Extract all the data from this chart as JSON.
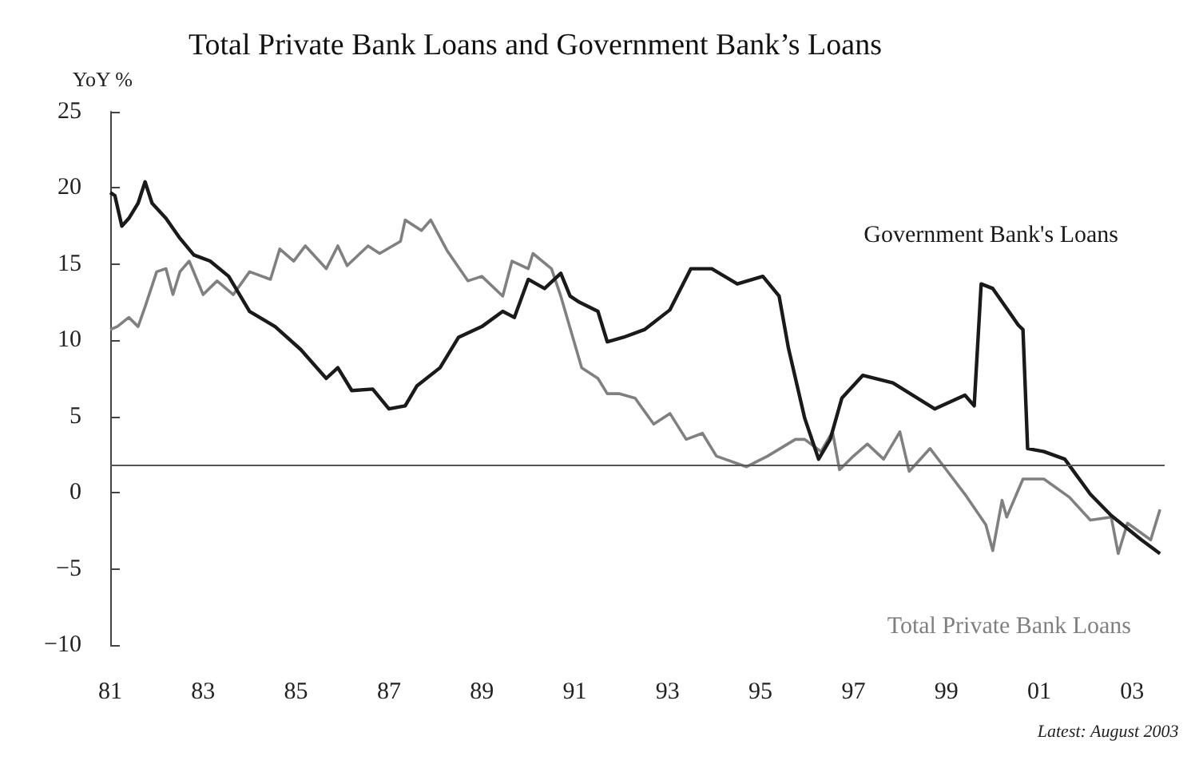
{
  "chart_data": {
    "type": "line",
    "title": "Total Private Bank Loans and Government Bank’s Loans",
    "ylabel": "YoY %",
    "annotations": [
      "Latest: August 2003"
    ],
    "series": [
      {
        "name": "Government Bank's Loans",
        "color": "#1a1a1a",
        "x": [
          1981.0,
          1981.1,
          1981.25,
          1981.4,
          1981.6,
          1981.75,
          1981.9,
          1982.2,
          1982.5,
          1982.8,
          1983.15,
          1983.55,
          1984.0,
          1984.55,
          1985.1,
          1985.65,
          1985.9,
          1986.2,
          1986.65,
          1987.0,
          1987.35,
          1987.6,
          1988.1,
          1988.5,
          1989.0,
          1989.45,
          1989.7,
          1990.0,
          1990.35,
          1990.7,
          1990.9,
          1991.1,
          1991.5,
          1991.7,
          1992.05,
          1992.5,
          1993.05,
          1993.5,
          1993.95,
          1994.5,
          1995.05,
          1995.4,
          1995.6,
          1995.95,
          1996.25,
          1996.5,
          1996.75,
          1997.2,
          1997.85,
          1998.75,
          1999.4,
          1999.6,
          1999.75,
          2000.0,
          2000.55,
          2000.65,
          2000.75,
          2001.1,
          2001.55,
          2002.1,
          2002.55,
          2003.2,
          2003.6
        ],
        "values": [
          19.7,
          19.5,
          17.5,
          18.0,
          19.0,
          20.4,
          19.0,
          18.0,
          16.7,
          15.6,
          15.2,
          14.2,
          11.9,
          10.9,
          9.4,
          7.5,
          8.2,
          6.7,
          6.8,
          5.5,
          5.7,
          7.0,
          8.2,
          10.2,
          10.9,
          11.9,
          11.5,
          14.0,
          13.4,
          14.4,
          12.9,
          12.5,
          11.9,
          9.9,
          10.2,
          10.7,
          12.0,
          14.7,
          14.7,
          13.7,
          14.2,
          12.9,
          9.5,
          4.9,
          2.2,
          3.5,
          6.2,
          7.7,
          7.2,
          5.5,
          6.4,
          5.7,
          13.7,
          13.4,
          11.0,
          10.7,
          2.9,
          2.7,
          2.2,
          -0.1,
          -1.5,
          -3.1,
          -4.0
        ]
      },
      {
        "name": "Total Private Bank Loans",
        "color": "#808080",
        "x": [
          1981.0,
          1981.15,
          1981.4,
          1981.6,
          1981.75,
          1982.0,
          1982.2,
          1982.35,
          1982.5,
          1982.7,
          1983.0,
          1983.3,
          1983.65,
          1984.0,
          1984.45,
          1984.65,
          1984.95,
          1985.2,
          1985.65,
          1985.9,
          1986.1,
          1986.55,
          1986.8,
          1987.25,
          1987.35,
          1987.7,
          1987.9,
          1988.25,
          1988.7,
          1989.0,
          1989.45,
          1989.65,
          1990.0,
          1990.1,
          1990.5,
          1990.7,
          1991.15,
          1991.5,
          1991.7,
          1991.95,
          1992.3,
          1992.7,
          1993.05,
          1993.4,
          1993.75,
          1994.05,
          1994.7,
          1995.15,
          1995.75,
          1995.95,
          1996.3,
          1996.55,
          1996.7,
          1997.0,
          1997.3,
          1997.65,
          1998.0,
          1998.2,
          1998.65,
          1999.0,
          1999.4,
          1999.85,
          2000.0,
          2000.2,
          2000.3,
          2000.65,
          2001.1,
          2001.65,
          2002.1,
          2002.55,
          2002.7,
          2002.9,
          2003.4,
          2003.6
        ],
        "values": [
          10.7,
          10.9,
          11.5,
          10.9,
          12.2,
          14.5,
          14.7,
          13.0,
          14.5,
          15.2,
          13.0,
          13.9,
          13.0,
          14.5,
          14.0,
          16.0,
          15.2,
          16.2,
          14.7,
          16.2,
          14.9,
          16.2,
          15.7,
          16.5,
          17.9,
          17.2,
          17.9,
          15.9,
          13.9,
          14.2,
          12.9,
          15.2,
          14.7,
          15.7,
          14.7,
          12.9,
          8.2,
          7.5,
          6.5,
          6.5,
          6.2,
          4.5,
          5.2,
          3.5,
          3.9,
          2.4,
          1.7,
          2.4,
          3.5,
          3.5,
          2.7,
          4.0,
          1.5,
          2.4,
          3.2,
          2.2,
          4.0,
          1.4,
          2.9,
          1.5,
          -0.1,
          -2.1,
          -3.8,
          -0.5,
          -1.6,
          0.9,
          0.9,
          -0.3,
          -1.8,
          -1.6,
          -4.0,
          -2.0,
          -3.1,
          -1.1
        ]
      }
    ],
    "xlim": [
      1981,
      2003.7
    ],
    "xticks": [
      {
        "value": 1981,
        "label": "81"
      },
      {
        "value": 1983,
        "label": "83"
      },
      {
        "value": 1985,
        "label": "85"
      },
      {
        "value": 1987,
        "label": "87"
      },
      {
        "value": 1989,
        "label": "89"
      },
      {
        "value": 1991,
        "label": "91"
      },
      {
        "value": 1993,
        "label": "93"
      },
      {
        "value": 1995,
        "label": "95"
      },
      {
        "value": 1997,
        "label": "97"
      },
      {
        "value": 1999,
        "label": "99"
      },
      {
        "value": 2001,
        "label": "01"
      },
      {
        "value": 2003,
        "label": "03"
      }
    ],
    "ylim": [
      -10,
      25
    ],
    "yticks": [
      -10,
      -5,
      0,
      5,
      10,
      15,
      20,
      25
    ],
    "ref_lines": [
      {
        "axis": "y",
        "value": 1.8,
        "color": "#555555"
      }
    ],
    "grid": false,
    "legend": false,
    "marker": "none",
    "line_style": "solid"
  }
}
